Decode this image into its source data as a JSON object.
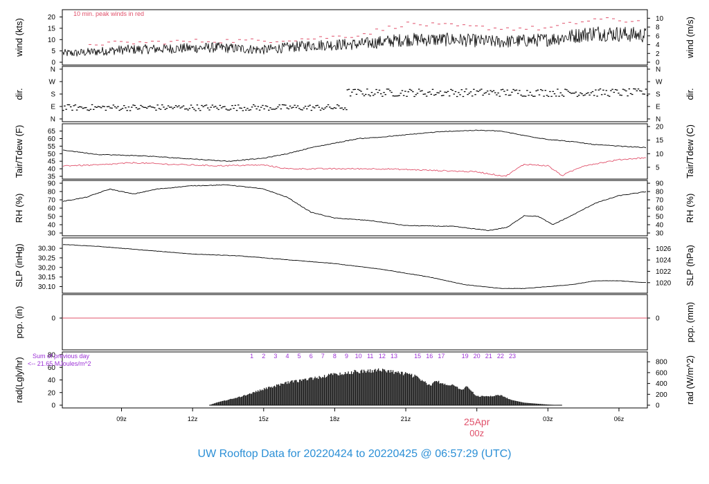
{
  "title": "UW Rooftop Data for 20220424  to  20220425 @ 06:57:29  (UTC)",
  "colors": {
    "title": "#2b8fd6",
    "peak": "#e0506a",
    "dew": "#e0506a",
    "date_marker": "#e0506a",
    "hours": "#9b2fd6",
    "line": "#000000"
  },
  "chart_data": [
    {
      "type": "line",
      "name": "wind",
      "ylabel_left": "wind (kts)",
      "ylabel_right": "wind (m/s)",
      "ylim": [
        0,
        22
      ],
      "yticks_left": [
        0,
        5,
        10,
        15,
        20
      ],
      "yticks_right": [
        0,
        2,
        4,
        6,
        8,
        10
      ],
      "annotation": "10 min. peak winds in red",
      "series": [
        {
          "values_hours": [
            7,
            9,
            11,
            13,
            15,
            17,
            19,
            21,
            23,
            25,
            27,
            29,
            31
          ],
          "values": [
            4,
            5.5,
            6,
            6.5,
            5.5,
            7.5,
            8,
            10,
            10,
            9,
            10,
            13,
            12
          ]
        },
        {
          "style": "peak",
          "values_hours": [
            7,
            9,
            11,
            13,
            15,
            17,
            19,
            21,
            23,
            25,
            27,
            29,
            31
          ],
          "values": [
            8,
            8.5,
            9,
            9.5,
            9.5,
            10.5,
            12,
            17,
            16,
            15,
            15,
            19,
            18
          ]
        }
      ]
    },
    {
      "type": "scatter",
      "name": "dir",
      "ylabel_left": "dir.",
      "ylabel_right": "dir.",
      "yticklabels": [
        "N",
        "E",
        "S",
        "W",
        "N"
      ],
      "segments": [
        {
          "from_hour": 6.5,
          "to_hour": 18.5,
          "value": "E"
        },
        {
          "from_hour": 18.5,
          "to_hour": 31.2,
          "value": "S"
        }
      ]
    },
    {
      "type": "line",
      "name": "temp",
      "ylabel_left": "Tair/Tdew (F)",
      "ylabel_right": "Tair/Tdew (C)",
      "ylim_left": [
        35,
        68
      ],
      "yticks_left": [
        35,
        40,
        45,
        50,
        55,
        60,
        65
      ],
      "yticks_right": [
        5,
        10,
        15,
        20
      ],
      "series": [
        {
          "style": "air",
          "values_hours": [
            6.5,
            8,
            10,
            12,
            13.5,
            15,
            16,
            17,
            18,
            19,
            20,
            21,
            22,
            23,
            24,
            25,
            26,
            27,
            28,
            29,
            30,
            31.2
          ],
          "values": [
            52.5,
            49.5,
            48.5,
            46.5,
            45,
            47,
            50,
            54,
            57,
            60,
            61,
            62.5,
            64,
            65,
            65.5,
            65,
            62,
            59.5,
            58,
            56,
            55,
            54
          ]
        },
        {
          "style": "dew",
          "values_hours": [
            6.5,
            8,
            9.5,
            11,
            13,
            15,
            16,
            18,
            20,
            22,
            24,
            25.2,
            26,
            27,
            27.6,
            28.5,
            30,
            31.2
          ],
          "values": [
            42,
            42.5,
            44,
            43,
            42,
            42.5,
            40,
            40,
            40,
            39,
            38,
            35,
            43,
            42,
            35.5,
            42,
            46,
            47.5
          ]
        }
      ]
    },
    {
      "type": "line",
      "name": "rh",
      "ylabel_left": "RH (%)",
      "ylabel_right": "RH (%)",
      "ylim": [
        30,
        90
      ],
      "yticks": [
        30,
        40,
        50,
        60,
        70,
        80,
        90
      ],
      "values_hours": [
        6.5,
        7.5,
        8.5,
        9.5,
        10.5,
        12,
        13.5,
        15,
        16,
        17,
        18,
        19.5,
        21,
        23,
        24.5,
        25.3,
        26,
        26.6,
        27.2,
        28,
        29,
        30,
        31.2
      ],
      "values": [
        68,
        73,
        83,
        77,
        83,
        87,
        88,
        83,
        73,
        55,
        48,
        45,
        39,
        38,
        33,
        37,
        51,
        50,
        40,
        51,
        66,
        75,
        80
      ]
    },
    {
      "type": "line",
      "name": "slp",
      "ylabel_left": "SLP (inHg)",
      "ylabel_right": "SLP (hPa)",
      "ylim": [
        30.08,
        30.34
      ],
      "yticks_left": [
        30.1,
        30.15,
        30.2,
        30.25,
        30.3
      ],
      "yticklabels_left": [
        "30.10",
        "30.15",
        "30.20",
        "30.25",
        "30.30"
      ],
      "yticks_right": [
        1020,
        1022,
        1024,
        1026
      ],
      "values_hours": [
        6.5,
        8,
        10,
        12,
        14,
        16,
        18,
        20,
        22,
        23.5,
        25,
        26,
        27,
        28,
        29,
        30,
        31.2
      ],
      "values": [
        30.32,
        30.31,
        30.29,
        30.27,
        30.26,
        30.24,
        30.22,
        30.19,
        30.15,
        30.11,
        30.09,
        30.09,
        30.1,
        30.11,
        30.13,
        30.13,
        30.12
      ]
    },
    {
      "type": "line",
      "name": "pcp",
      "ylabel_left": "pcp. (in)",
      "ylabel_right": "pcp. (mm)",
      "yticks_left": [
        0
      ],
      "yticks_right": [
        0
      ],
      "values_hours": [
        6.5,
        31.2
      ],
      "values": [
        0,
        0
      ]
    },
    {
      "type": "area",
      "name": "rad",
      "ylabel_left": "rad(Lgly/hr)",
      "ylabel_right": "rad (W/m^2)",
      "ylim": [
        0,
        80
      ],
      "yticks_left": [
        0,
        20,
        40,
        60,
        80
      ],
      "yticks_right": [
        0,
        200,
        400,
        600,
        800
      ],
      "annotation": [
        "Sum of previous day",
        "<-- 21.65 MJoules/m^2"
      ],
      "hour_marks": [
        "1",
        "2",
        "3",
        "4",
        "5",
        "6",
        "7",
        "8",
        "9",
        "10",
        "11",
        "12",
        "13",
        "15",
        "16",
        "17",
        "19",
        "20",
        "21",
        "22",
        "23"
      ],
      "values_hours": [
        12.7,
        13,
        14,
        15,
        16,
        17,
        18,
        19,
        20,
        21,
        21.5,
        22,
        22.3,
        22.6,
        23,
        23.3,
        23.6,
        24,
        24.5,
        25,
        25.5,
        26,
        27,
        27.6
      ],
      "values": [
        0,
        4,
        14,
        27,
        38,
        45,
        52,
        57,
        59,
        53,
        47,
        33,
        41,
        36,
        34,
        26,
        31,
        15,
        15,
        17,
        8,
        4,
        1,
        0
      ]
    }
  ],
  "x_axis": {
    "ticks_hours": [
      9,
      12,
      15,
      18,
      21,
      27,
      30
    ],
    "ticks": [
      "09z",
      "12z",
      "15z",
      "18z",
      "21z",
      "03z",
      "06z"
    ],
    "date_marker_hour": 24,
    "date_marker": [
      "25Apr",
      "00z"
    ]
  }
}
